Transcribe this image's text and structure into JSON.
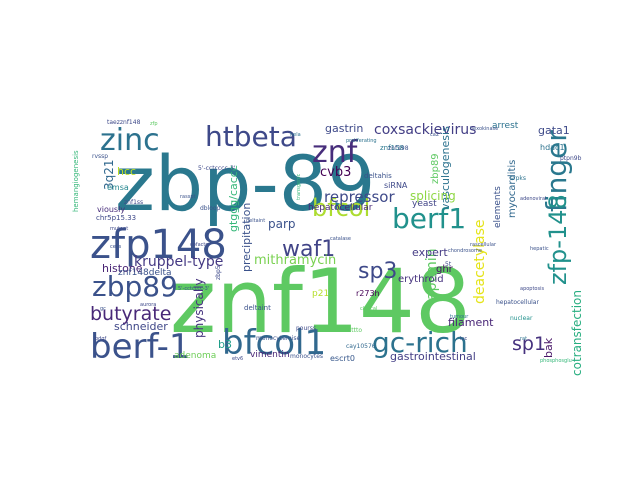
{
  "words": [
    {
      "text": "znf148",
      "color": "#5ec962"
    },
    {
      "text": "zbp-89",
      "color": "#2a788e"
    },
    {
      "text": "zfp148",
      "color": "#3b528b"
    },
    {
      "text": "bfcol1",
      "color": "#31688e"
    },
    {
      "text": "berf-1",
      "color": "#3b528b"
    },
    {
      "text": "gc-rich",
      "color": "#2c728e"
    },
    {
      "text": "htbeta",
      "color": "#3e4989"
    },
    {
      "text": "zinc",
      "color": "#2c728e"
    },
    {
      "text": "znf",
      "color": "#472d7b"
    },
    {
      "text": "finger",
      "color": "#2a788e"
    },
    {
      "text": "berf1",
      "color": "#21918c"
    },
    {
      "text": "bfcol",
      "color": "#addc30"
    },
    {
      "text": "zbp89",
      "color": "#3b528b"
    },
    {
      "text": "zfp-148",
      "color": "#21918c"
    },
    {
      "text": "sp3",
      "color": "#3e4989"
    },
    {
      "text": "waf1",
      "color": "#414487"
    },
    {
      "text": "butyrate",
      "color": "#482878"
    },
    {
      "text": "sp1",
      "color": "#46327e"
    },
    {
      "text": "kruppel-type",
      "color": "#443983"
    },
    {
      "text": "mithramycin",
      "color": "#7ad151"
    },
    {
      "text": "apcmin",
      "color": "#5ec962"
    },
    {
      "text": "deacetylase",
      "color": "#e5e419"
    },
    {
      "text": "repressor",
      "color": "#3e4989"
    },
    {
      "text": "coxsackievirus",
      "color": "#433e85"
    },
    {
      "text": "cotransfection",
      "color": "#28ae80"
    },
    {
      "text": "gastrointestinal",
      "color": "#433e85"
    },
    {
      "text": "vasculogenesis",
      "color": "#2c728e"
    },
    {
      "text": "gtggg/caccc",
      "color": "#35b779"
    },
    {
      "text": "precipitation",
      "color": "#3b528b"
    },
    {
      "text": "physically",
      "color": "#46337f"
    },
    {
      "text": "schneider",
      "color": "#3f4788"
    },
    {
      "text": "histone",
      "color": "#482374"
    },
    {
      "text": "filament",
      "color": "#482576"
    },
    {
      "text": "cvb3",
      "color": "#440154"
    },
    {
      "text": "parp",
      "color": "#3b528b"
    },
    {
      "text": "gastrin",
      "color": "#3e4989"
    },
    {
      "text": "gata1",
      "color": "#3e4a89"
    },
    {
      "text": "expert",
      "color": "#443b84"
    },
    {
      "text": "ghr",
      "color": "#471164"
    },
    {
      "text": "bak",
      "color": "#481668"
    },
    {
      "text": "hcc",
      "color": "#bddf26"
    },
    {
      "text": "3q21",
      "color": "#31688e"
    },
    {
      "text": "znf148delta",
      "color": "#3b528b"
    },
    {
      "text": "hepatocellular",
      "color": "#482878"
    },
    {
      "text": "erythroid",
      "color": "#46327e"
    },
    {
      "text": "b3",
      "color": "#1f9e89"
    },
    {
      "text": "adenoma",
      "color": "#6ece58"
    },
    {
      "text": "vimentin",
      "color": "#482475"
    },
    {
      "text": "escrt0",
      "color": "#38588c"
    },
    {
      "text": "myocarditis",
      "color": "#31688e"
    },
    {
      "text": "elements",
      "color": "#3b528b"
    },
    {
      "text": "yeast",
      "color": "#414487"
    },
    {
      "text": "arrest",
      "color": "#2c728e"
    },
    {
      "text": "splicing",
      "color": "#8fd744"
    },
    {
      "text": "emsa",
      "color": "#24868e"
    },
    {
      "text": "p21",
      "color": "#b5de2b"
    },
    {
      "text": "deltaint",
      "color": "#3b528b"
    },
    {
      "text": "siRNA",
      "color": "#3e4989"
    },
    {
      "text": "hdac1",
      "color": "#2c728e"
    },
    {
      "text": "r273h",
      "color": "#440154"
    },
    {
      "text": "monocytes",
      "color": "#3b528b"
    },
    {
      "text": "znf158",
      "color": "#2a788e"
    },
    {
      "text": "deltahis",
      "color": "#3b528b"
    },
    {
      "text": "cay10576",
      "color": "#31688e"
    },
    {
      "text": "viously",
      "color": "#472d7b"
    },
    {
      "text": "chr5p15.33",
      "color": "#3e4989"
    },
    {
      "text": "hemangiogenesis",
      "color": "#35b779"
    },
    {
      "text": "taezznf148",
      "color": "#3e4989"
    },
    {
      "text": "zbp89",
      "color": "#5ec962"
    },
    {
      "text": "rvssp",
      "color": "#3b528b"
    },
    {
      "text": "dbloop",
      "color": "#3b528b"
    },
    {
      "text": "chondrosome",
      "color": "#3b528b"
    },
    {
      "text": "5t",
      "color": "#3e4989"
    },
    {
      "text": "hepatocellular",
      "color": "#3b528b"
    },
    {
      "text": "nuclear",
      "color": "#21918c"
    },
    {
      "text": "monocytemise",
      "color": "#3b528b"
    },
    {
      "text": "znf1ss",
      "color": "#3e4989"
    },
    {
      "text": "ptpn9b",
      "color": "#3e4989"
    },
    {
      "text": "5'-cctcccc-3'",
      "color": "#3e4989"
    },
    {
      "text": "srpks",
      "color": "#2c728e"
    },
    {
      "text": "adenoviral",
      "color": "#3e4989"
    },
    {
      "text": "znf198",
      "color": "#3b528b"
    },
    {
      "text": "proliferating",
      "color": "#2c728e"
    },
    {
      "text": "hexokinase",
      "color": "#3b528b"
    },
    {
      "text": "deltaint",
      "color": "#3b528b"
    },
    {
      "text": "zbp5",
      "color": "#3e4989"
    },
    {
      "text": "phosphosglu",
      "color": "#35b779"
    },
    {
      "text": "pourss",
      "color": "#3e4989"
    },
    {
      "text": "etv6",
      "color": "#3e4989"
    },
    {
      "text": "cttto",
      "color": "#5ec962"
    },
    {
      "text": "rasspt",
      "color": "#3b528b"
    },
    {
      "text": "transgenic",
      "color": "#35b779"
    },
    {
      "text": "mutant",
      "color": "#3e4989"
    },
    {
      "text": "5'-cctcccc-3'",
      "color": "#3b528b"
    },
    {
      "text": "catalase",
      "color": "#3b528b"
    },
    {
      "text": "tumour",
      "color": "#2c728e"
    },
    {
      "text": "cofactor",
      "color": "#3e4989"
    },
    {
      "text": "rascellular",
      "color": "#3b528b"
    },
    {
      "text": "hepatic",
      "color": "#3b528b"
    },
    {
      "text": "clinical",
      "color": "#5ec962"
    },
    {
      "text": "cells",
      "color": "#3b528b"
    },
    {
      "text": "aurora",
      "color": "#3e4989"
    },
    {
      "text": "hela",
      "color": "#2c728e"
    },
    {
      "text": "apoptosis",
      "color": "#3e4989"
    },
    {
      "text": "ca2",
      "color": "#3b528b"
    },
    {
      "text": "pdgf",
      "color": "#3e4989"
    },
    {
      "text": "zfp",
      "color": "#5ec962"
    },
    {
      "text": "gc",
      "color": "#3b528b"
    },
    {
      "text": "luc",
      "color": "#3e4989"
    },
    {
      "text": "rat",
      "color": "#2c728e"
    }
  ]
}
